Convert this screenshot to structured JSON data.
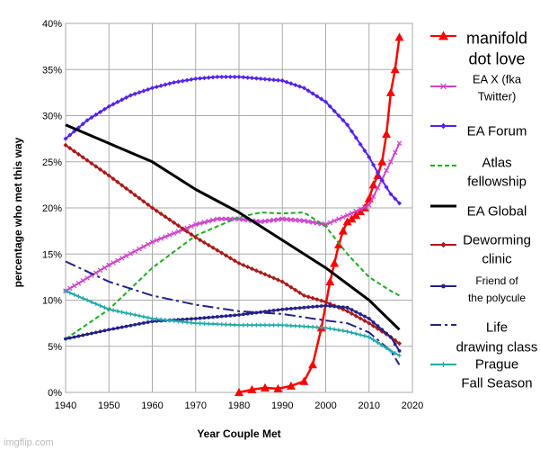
{
  "chart_data": {
    "type": "line",
    "xlabel": "Year Couple Met",
    "ylabel": "percentage who met this way",
    "xlim": [
      1940,
      2020
    ],
    "ylim": [
      0,
      40
    ],
    "x_ticks": [
      "1940",
      "1950",
      "1960",
      "1970",
      "1980",
      "1990",
      "2000",
      "2010",
      "2020"
    ],
    "y_ticks": [
      "0%",
      "5%",
      "10%",
      "15%",
      "20%",
      "25%",
      "30%",
      "35%",
      "40%"
    ],
    "grid": true,
    "legend_position": "right",
    "series": [
      {
        "name": "manifold dot love",
        "color": "#ff0000",
        "marker": "triangle",
        "dash": "solid",
        "x": [
          1980,
          1983,
          1986,
          1989,
          1992,
          1995,
          1997,
          1999,
          2001,
          2002,
          2003,
          2004,
          2005,
          2006,
          2007,
          2008,
          2009,
          2010,
          2011,
          2012,
          2013,
          2014,
          2015,
          2016,
          2017
        ],
        "y": [
          0,
          0.3,
          0.5,
          0.4,
          0.7,
          1.2,
          3,
          7,
          12,
          14,
          16,
          17.5,
          18.5,
          18.8,
          19.2,
          19.6,
          20,
          21,
          22.5,
          23.5,
          25,
          28,
          32.5,
          35,
          38.5
        ]
      },
      {
        "name": "EA X (fka Twitter)",
        "color": "#cc44cc",
        "marker": "x",
        "dash": "solid",
        "x": [
          1940,
          1950,
          1960,
          1970,
          1975,
          1980,
          1985,
          1990,
          1995,
          2000,
          2005,
          2010,
          2015,
          2017
        ],
        "y": [
          11,
          13.8,
          16.3,
          18.2,
          18.8,
          18.8,
          18.5,
          18.8,
          18.6,
          18.2,
          19.2,
          20.3,
          25,
          27
        ]
      },
      {
        "name": "EA Forum",
        "color": "#5522ee",
        "marker": "diamond",
        "dash": "solid",
        "x": [
          1940,
          1945,
          1950,
          1955,
          1960,
          1965,
          1970,
          1975,
          1980,
          1985,
          1990,
          1995,
          2000,
          2005,
          2010,
          2013,
          2015,
          2017
        ],
        "y": [
          27.5,
          29.5,
          31,
          32.2,
          33,
          33.6,
          34,
          34.2,
          34.2,
          34,
          33.8,
          33,
          31.5,
          29,
          25.5,
          23,
          21.5,
          20.5
        ]
      },
      {
        "name": "Atlas fellowship",
        "color": "#22aa22",
        "marker": "none",
        "dash": "dashed",
        "x": [
          1940,
          1950,
          1960,
          1970,
          1980,
          1985,
          1990,
          1995,
          2000,
          2005,
          2010,
          2015,
          2017
        ],
        "y": [
          5.8,
          9,
          13.5,
          17,
          19,
          19.5,
          19.4,
          19.5,
          18,
          15,
          12.5,
          11,
          10.5
        ]
      },
      {
        "name": "EA Global",
        "color": "#000000",
        "marker": "none",
        "dash": "solid",
        "x": [
          1940,
          1950,
          1960,
          1970,
          1980,
          1990,
          2000,
          2010,
          2017
        ],
        "y": [
          29,
          27,
          25,
          22,
          19.5,
          16.5,
          13.5,
          10,
          6.8
        ]
      },
      {
        "name": "Deworming clinic",
        "color": "#aa1a1a",
        "marker": "diamond",
        "dash": "solid",
        "x": [
          1940,
          1950,
          1960,
          1970,
          1980,
          1985,
          1990,
          1995,
          2000,
          2005,
          2010,
          2015,
          2017
        ],
        "y": [
          26.8,
          23.5,
          20,
          16.8,
          14,
          13,
          12,
          10.5,
          9.8,
          8.8,
          7.5,
          6,
          5.3
        ]
      },
      {
        "name": "Friend of the polycule",
        "color": "#222288",
        "marker": "dot",
        "dash": "solid",
        "x": [
          1940,
          1950,
          1960,
          1970,
          1980,
          1990,
          2000,
          2005,
          2010,
          2015,
          2017
        ],
        "y": [
          5.8,
          6.8,
          7.7,
          8,
          8.4,
          9,
          9.4,
          9.2,
          8,
          6,
          4.5
        ]
      },
      {
        "name": "Life drawing class",
        "color": "#222288",
        "marker": "none",
        "dash": "dashdot",
        "x": [
          1940,
          1950,
          1960,
          1970,
          1980,
          1990,
          2000,
          2005,
          2010,
          2015,
          2017
        ],
        "y": [
          14.2,
          12,
          10.5,
          9.5,
          8.8,
          8.5,
          7.8,
          7.5,
          6.5,
          4.5,
          3
        ]
      },
      {
        "name": "Prague Fall Season",
        "color": "#22aaaa",
        "marker": "plus",
        "dash": "solid",
        "x": [
          1940,
          1950,
          1960,
          1970,
          1980,
          1990,
          2000,
          2005,
          2010,
          2015,
          2017
        ],
        "y": [
          11,
          9,
          8,
          7.5,
          7.3,
          7.3,
          7,
          6.6,
          6,
          4.5,
          4
        ]
      }
    ]
  },
  "watermark": "imgflip.com"
}
